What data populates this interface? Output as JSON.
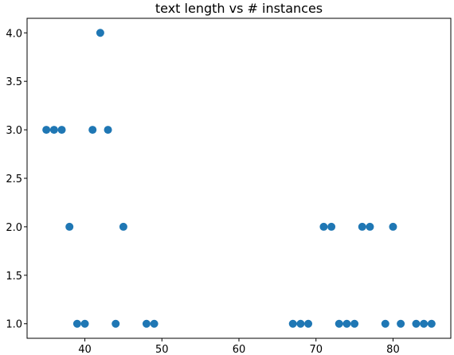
{
  "chart_data": {
    "type": "scatter",
    "title": "text length vs # instances",
    "xlabel": "",
    "ylabel": "",
    "xlim": [
      32.5,
      87.5
    ],
    "ylim": [
      0.85,
      4.15
    ],
    "xticks": [
      40,
      50,
      60,
      70,
      80
    ],
    "yticks": [
      1.0,
      1.5,
      2.0,
      2.5,
      3.0,
      3.5,
      4.0
    ],
    "xtick_labels": [
      "40",
      "50",
      "60",
      "70",
      "80"
    ],
    "ytick_labels": [
      "1.0",
      "1.5",
      "2.0",
      "2.5",
      "3.0",
      "3.5",
      "4.0"
    ],
    "grid": false,
    "marker_color": "#1f77b4",
    "points": [
      {
        "x": 35,
        "y": 3
      },
      {
        "x": 36,
        "y": 3
      },
      {
        "x": 37,
        "y": 3
      },
      {
        "x": 38,
        "y": 2
      },
      {
        "x": 39,
        "y": 1
      },
      {
        "x": 40,
        "y": 1
      },
      {
        "x": 41,
        "y": 3
      },
      {
        "x": 42,
        "y": 4
      },
      {
        "x": 43,
        "y": 3
      },
      {
        "x": 44,
        "y": 1
      },
      {
        "x": 45,
        "y": 2
      },
      {
        "x": 48,
        "y": 1
      },
      {
        "x": 49,
        "y": 1
      },
      {
        "x": 67,
        "y": 1
      },
      {
        "x": 68,
        "y": 1
      },
      {
        "x": 69,
        "y": 1
      },
      {
        "x": 71,
        "y": 2
      },
      {
        "x": 72,
        "y": 2
      },
      {
        "x": 73,
        "y": 1
      },
      {
        "x": 74,
        "y": 1
      },
      {
        "x": 75,
        "y": 1
      },
      {
        "x": 76,
        "y": 2
      },
      {
        "x": 77,
        "y": 2
      },
      {
        "x": 79,
        "y": 1
      },
      {
        "x": 80,
        "y": 2
      },
      {
        "x": 81,
        "y": 1
      },
      {
        "x": 83,
        "y": 1
      },
      {
        "x": 84,
        "y": 1
      },
      {
        "x": 85,
        "y": 1
      }
    ]
  }
}
